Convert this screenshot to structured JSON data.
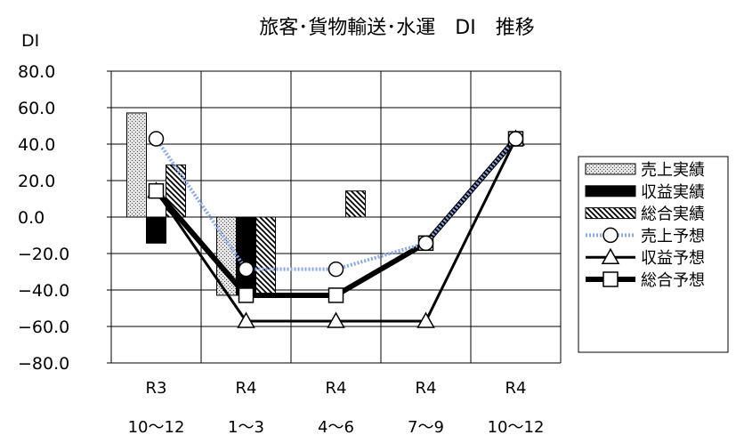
{
  "chart_data": {
    "type": "bar",
    "title": "旅客･貨物輸送･水運　DI　推移",
    "ylabel": "DI",
    "xlabel": "",
    "ylim": [
      -80,
      80
    ],
    "y_ticks": [
      "80.0",
      "60.0",
      "40.0",
      "20.0",
      "0.0",
      "−20.0",
      "−40.0",
      "−60.0",
      "−80.0"
    ],
    "categories": [
      {
        "line1": "R3",
        "line2": "10〜12"
      },
      {
        "line1": "R4",
        "line2": "1〜3"
      },
      {
        "line1": "R4",
        "line2": "4〜6"
      },
      {
        "line1": "R4",
        "line2": "7〜9"
      },
      {
        "line1": "R4",
        "line2": "10〜12"
      }
    ],
    "grid": true,
    "legend_position": "right",
    "bar_series": [
      {
        "name": "売上実績",
        "style": "dotted",
        "values": [
          57.1,
          -42.9,
          null,
          null,
          null
        ]
      },
      {
        "name": "収益実績",
        "style": "solid",
        "values": [
          -14.3,
          -42.9,
          null,
          null,
          null
        ]
      },
      {
        "name": "総合実績",
        "style": "hatched",
        "values": [
          28.6,
          -42.9,
          14.3,
          null,
          null
        ]
      }
    ],
    "line_series": [
      {
        "name": "売上予想",
        "style": "blue-dotted-circle",
        "values": [
          42.9,
          -28.6,
          -28.6,
          -14.3,
          42.9
        ]
      },
      {
        "name": "収益予想",
        "style": "black-triangle",
        "values": [
          14.3,
          -57.1,
          -57.1,
          -57.1,
          42.9
        ]
      },
      {
        "name": "総合予想",
        "style": "black-thick-square",
        "values": [
          14.3,
          -42.9,
          -42.9,
          -14.3,
          42.9
        ]
      }
    ]
  }
}
